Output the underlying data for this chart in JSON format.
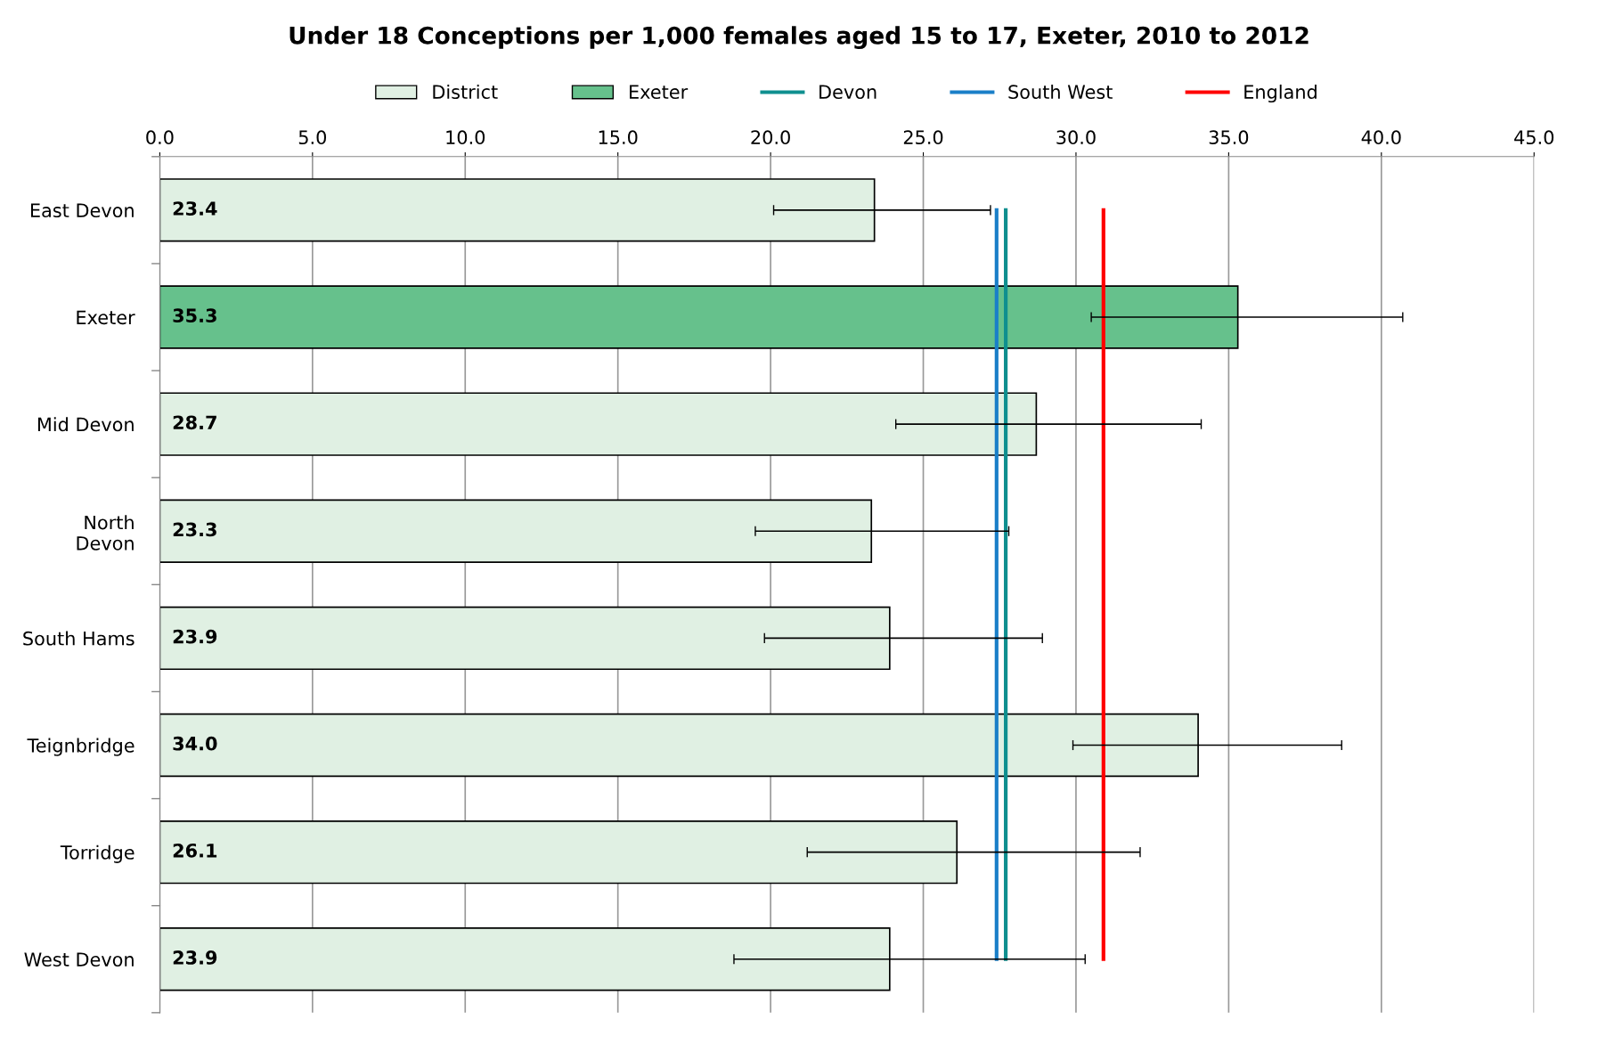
{
  "chart_data": {
    "type": "bar",
    "orientation": "horizontal",
    "title": "Under 18 Conceptions per 1,000 females aged 15 to 17, Exeter, 2010 to 2012",
    "categories": [
      "East Devon",
      "Exeter",
      "Mid Devon",
      "North\nDevon",
      "South Hams",
      "Teignbridge",
      "Torridge",
      "West Devon"
    ],
    "series": [
      {
        "name": "District",
        "color": "#e0f0e3",
        "values": [
          23.4,
          null,
          28.7,
          23.3,
          23.9,
          34.0,
          26.1,
          23.9
        ],
        "value_labels": [
          "23.4",
          null,
          "28.7",
          "23.3",
          "23.9",
          "34.0",
          "26.1",
          "23.9"
        ],
        "errors": [
          [
            20.1,
            27.2
          ],
          null,
          [
            24.1,
            34.1
          ],
          [
            19.5,
            27.8
          ],
          [
            19.8,
            28.9
          ],
          [
            29.9,
            38.7
          ],
          [
            21.2,
            32.1
          ],
          [
            18.8,
            30.3
          ]
        ]
      },
      {
        "name": "Exeter",
        "color": "#66c18c",
        "values": [
          null,
          35.3,
          null,
          null,
          null,
          null,
          null,
          null
        ],
        "value_labels": [
          null,
          "35.3",
          null,
          null,
          null,
          null,
          null,
          null
        ],
        "errors": [
          null,
          [
            30.5,
            40.7
          ],
          null,
          null,
          null,
          null,
          null,
          null
        ]
      }
    ],
    "ref_lines": [
      {
        "axis": "x",
        "value": 27.7,
        "label": "Devon",
        "color": "#0f8f8f"
      },
      {
        "axis": "x",
        "value": 27.4,
        "label": "South West",
        "color": "#1a7fc8"
      },
      {
        "axis": "x",
        "value": 30.9,
        "label": "England",
        "color": "#ff0000"
      }
    ],
    "xlim": [
      0,
      45
    ],
    "xticks": [
      {
        "value": 0,
        "label": "0.0"
      },
      {
        "value": 5,
        "label": "5.0"
      },
      {
        "value": 10,
        "label": "10.0"
      },
      {
        "value": 15,
        "label": "15.0"
      },
      {
        "value": 20,
        "label": "20.0"
      },
      {
        "value": 25,
        "label": "25.0"
      },
      {
        "value": 30,
        "label": "30.0"
      },
      {
        "value": 35,
        "label": "35.0"
      },
      {
        "value": 40,
        "label": "40.0"
      },
      {
        "value": 45,
        "label": "45.0"
      }
    ],
    "grid": "x",
    "legend": "top"
  }
}
